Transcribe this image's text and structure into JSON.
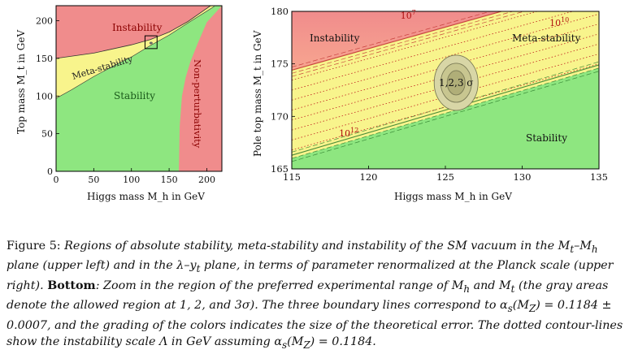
{
  "left_plot": {
    "chart_data": {
      "type": "area",
      "xlabel": "Higgs mass M_h in GeV",
      "ylabel": "Top mass M_t in GeV",
      "xlim": [
        0,
        220
      ],
      "ylim": [
        0,
        220
      ],
      "x_ticks": [
        "0",
        "50",
        "100",
        "150",
        "200"
      ],
      "y_ticks": [
        "0",
        "50",
        "100",
        "150",
        "200"
      ],
      "regions": [
        {
          "name": "Instability",
          "color": "#f08c8c"
        },
        {
          "name": "Meta-stability",
          "color": "#f8f48c"
        },
        {
          "name": "Stability",
          "color": "#8ee680"
        },
        {
          "name": "Non-perturbativity",
          "color": "#f08c8c"
        }
      ],
      "stability_boundary": {
        "x": [
          0,
          20,
          50,
          80,
          100,
          125,
          150,
          175,
          210
        ],
        "y": [
          97,
          108,
          126,
          142,
          152,
          167,
          181,
          197,
          219
        ]
      },
      "instability_boundary": {
        "x": [
          0,
          50,
          100,
          125,
          150,
          175,
          205
        ],
        "y": [
          150,
          157,
          168,
          175,
          185,
          199,
          220
        ]
      },
      "nonpert_boundary": {
        "x": [
          163,
          164,
          167,
          172,
          178,
          188,
          200
        ],
        "y": [
          0,
          60,
          100,
          125,
          145,
          170,
          198
        ]
      },
      "zoom_box": {
        "x": [
          118,
          134
        ],
        "y": [
          163,
          180
        ]
      }
    }
  },
  "right_plot": {
    "chart_data": {
      "type": "area",
      "xlabel": "Higgs mass M_h in GeV",
      "ylabel": "Pole top mass M_t in GeV",
      "xlim": [
        115,
        135
      ],
      "ylim": [
        165,
        180
      ],
      "x_ticks": [
        "115",
        "120",
        "125",
        "130",
        "135"
      ],
      "y_ticks": [
        "165",
        "170",
        "175",
        "180"
      ],
      "regions": [
        {
          "name": "Instability",
          "color": "#f08c8c"
        },
        {
          "name": "Meta-stability",
          "color": "#f8f48c"
        },
        {
          "name": "Stability",
          "color": "#8ee680"
        }
      ],
      "instability_line": {
        "x": [
          115,
          135
        ],
        "y": [
          174.4,
          182.6
        ]
      },
      "stability_line": {
        "x": [
          115,
          135
        ],
        "y": [
          166.0,
          174.6
        ]
      },
      "contour_labels": [
        {
          "text": "10^7",
          "x": 122.5,
          "y": 179.6
        },
        {
          "text": "10^10",
          "x": 132.2,
          "y": 178.9
        },
        {
          "text": "10^12",
          "x": 118.5,
          "y": 168.4
        }
      ],
      "error_ellipse": {
        "center": [
          125.7,
          173.2
        ],
        "label": "1,2,3 σ"
      }
    }
  },
  "caption": {
    "label": "Figure 5:",
    "text_1": "Regions of absolute stability, meta-stability and instability of the SM vacuum in the M",
    "text_2": "M",
    "text_3": " plane (upper left) and in the λ–y",
    "text_4": " plane, in terms of parameter renormalized at the Planck scale (upper right). ",
    "bottom": "Bottom",
    "text_5": ": Zoom in the region of the preferred experimental range of M",
    "text_6": " and M",
    "text_7": " (the gray areas denote the allowed region at 1, 2, and 3σ). The three boundary lines correspond to α",
    "text_8": "(M",
    "text_9": ") = 0.1184 ± 0.0007, and the grading of the colors indicates the size of the theoretical error. The dotted contour-lines show the instability scale Λ in GeV assuming α",
    "text_10": "(M",
    "text_11": ") = 0.1184.",
    "sub_t": "t",
    "sub_h": "h",
    "sub_s": "s",
    "sub_Z": "Z"
  }
}
